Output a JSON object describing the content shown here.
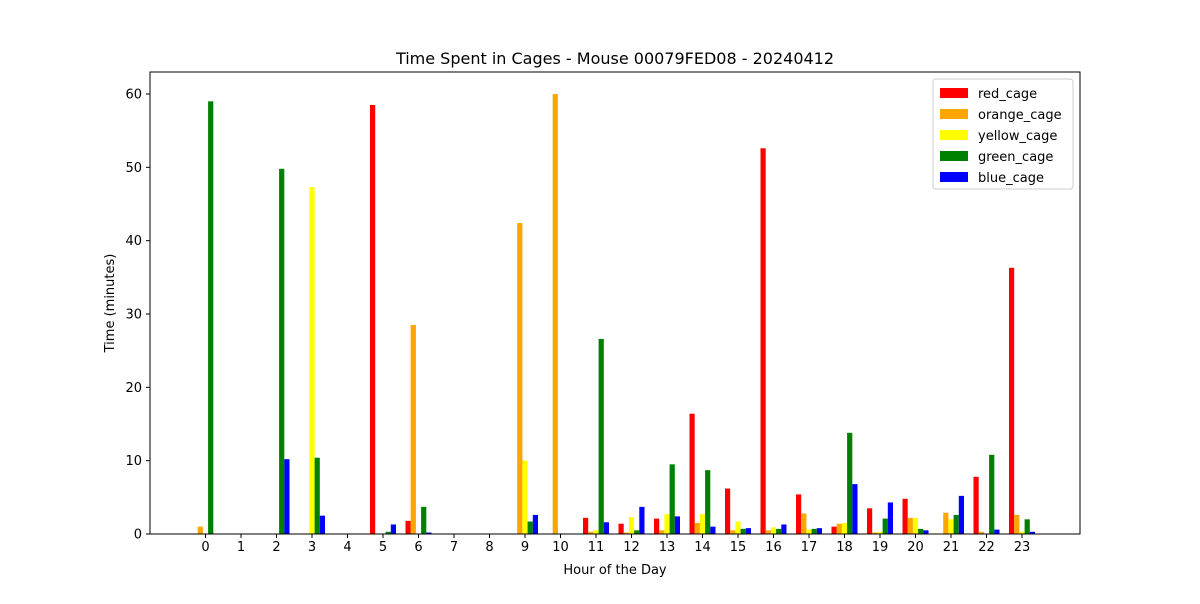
{
  "chart_data": {
    "type": "bar",
    "title": "Time Spent in Cages - Mouse 00079FED08 - 20240412",
    "xlabel": "Hour of the Day",
    "ylabel": "Time (minutes)",
    "categories": [
      "0",
      "1",
      "2",
      "3",
      "4",
      "5",
      "6",
      "7",
      "8",
      "9",
      "10",
      "11",
      "12",
      "13",
      "14",
      "15",
      "16",
      "17",
      "18",
      "19",
      "20",
      "21",
      "22",
      "23"
    ],
    "ylim": [
      0,
      63
    ],
    "yticks": [
      0,
      10,
      20,
      30,
      40,
      50,
      60
    ],
    "legend_position": "top-right",
    "grid": false,
    "series": [
      {
        "name": "red_cage",
        "color": "#ff0000",
        "values": [
          0,
          0,
          0,
          0,
          0,
          58.5,
          1.8,
          0,
          0,
          0,
          0,
          2.2,
          1.4,
          2.1,
          16.4,
          6.2,
          52.6,
          5.4,
          1.0,
          3.5,
          4.8,
          0,
          7.8,
          36.3
        ]
      },
      {
        "name": "orange_cage",
        "color": "#ffa500",
        "values": [
          1.0,
          0,
          0,
          0,
          0,
          0,
          28.5,
          0,
          0,
          42.4,
          60.0,
          0.3,
          0.2,
          0.5,
          1.5,
          0.5,
          0.5,
          2.8,
          1.4,
          0.2,
          2.2,
          2.9,
          0.3,
          2.6
        ]
      },
      {
        "name": "yellow_cage",
        "color": "#ffff00",
        "values": [
          0,
          0,
          0,
          47.3,
          0,
          0,
          0,
          0,
          0,
          10.0,
          0,
          0.5,
          2.3,
          2.7,
          2.7,
          1.7,
          0.9,
          0.6,
          1.5,
          0.3,
          2.2,
          2.0,
          0,
          0.3
        ]
      },
      {
        "name": "green_cage",
        "color": "#008000",
        "values": [
          59.0,
          0,
          49.8,
          10.4,
          0,
          0.3,
          3.7,
          0,
          0,
          1.7,
          0,
          26.6,
          0.5,
          9.5,
          8.7,
          0.7,
          0.7,
          0.7,
          13.8,
          2.1,
          0.7,
          2.6,
          10.8,
          2.0
        ]
      },
      {
        "name": "blue_cage",
        "color": "#0000ff",
        "values": [
          0,
          0,
          10.2,
          2.5,
          0,
          1.3,
          0.2,
          0,
          0,
          2.6,
          0,
          1.6,
          3.7,
          2.4,
          1.0,
          0.8,
          1.3,
          0.8,
          6.8,
          4.3,
          0.5,
          5.2,
          0.6,
          0.3
        ]
      }
    ]
  }
}
